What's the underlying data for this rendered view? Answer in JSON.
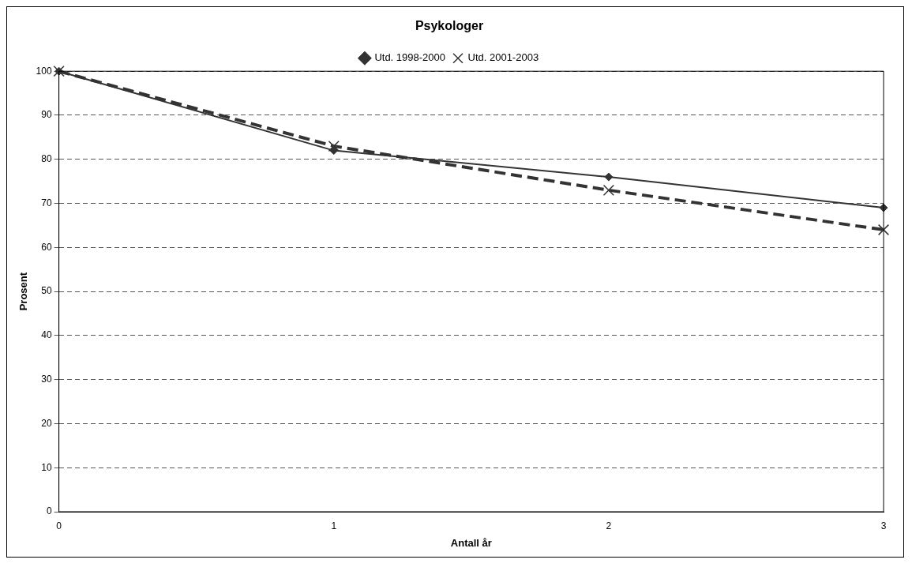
{
  "chart_data": {
    "type": "line",
    "title": "Psykologer",
    "xlabel": "Antall år",
    "ylabel": "Prosent",
    "x": [
      0,
      1,
      2,
      3
    ],
    "xlim": [
      0,
      3
    ],
    "xticks": [
      0,
      1,
      2,
      3
    ],
    "ylim": [
      0,
      100
    ],
    "yticks": [
      0,
      10,
      20,
      30,
      40,
      50,
      60,
      70,
      80,
      90,
      100
    ],
    "grid": "y",
    "legend": "top",
    "series": [
      {
        "name": "Utd. 1998-2000",
        "color": "#333333",
        "values": [
          100,
          82,
          76,
          69
        ],
        "marker": "diamond",
        "line_style": "solid"
      },
      {
        "name": "Utd. 2001-2003",
        "color": "#333333",
        "values": [
          100,
          83,
          73,
          64
        ],
        "marker": "cross",
        "line_style": "dashed"
      }
    ]
  }
}
